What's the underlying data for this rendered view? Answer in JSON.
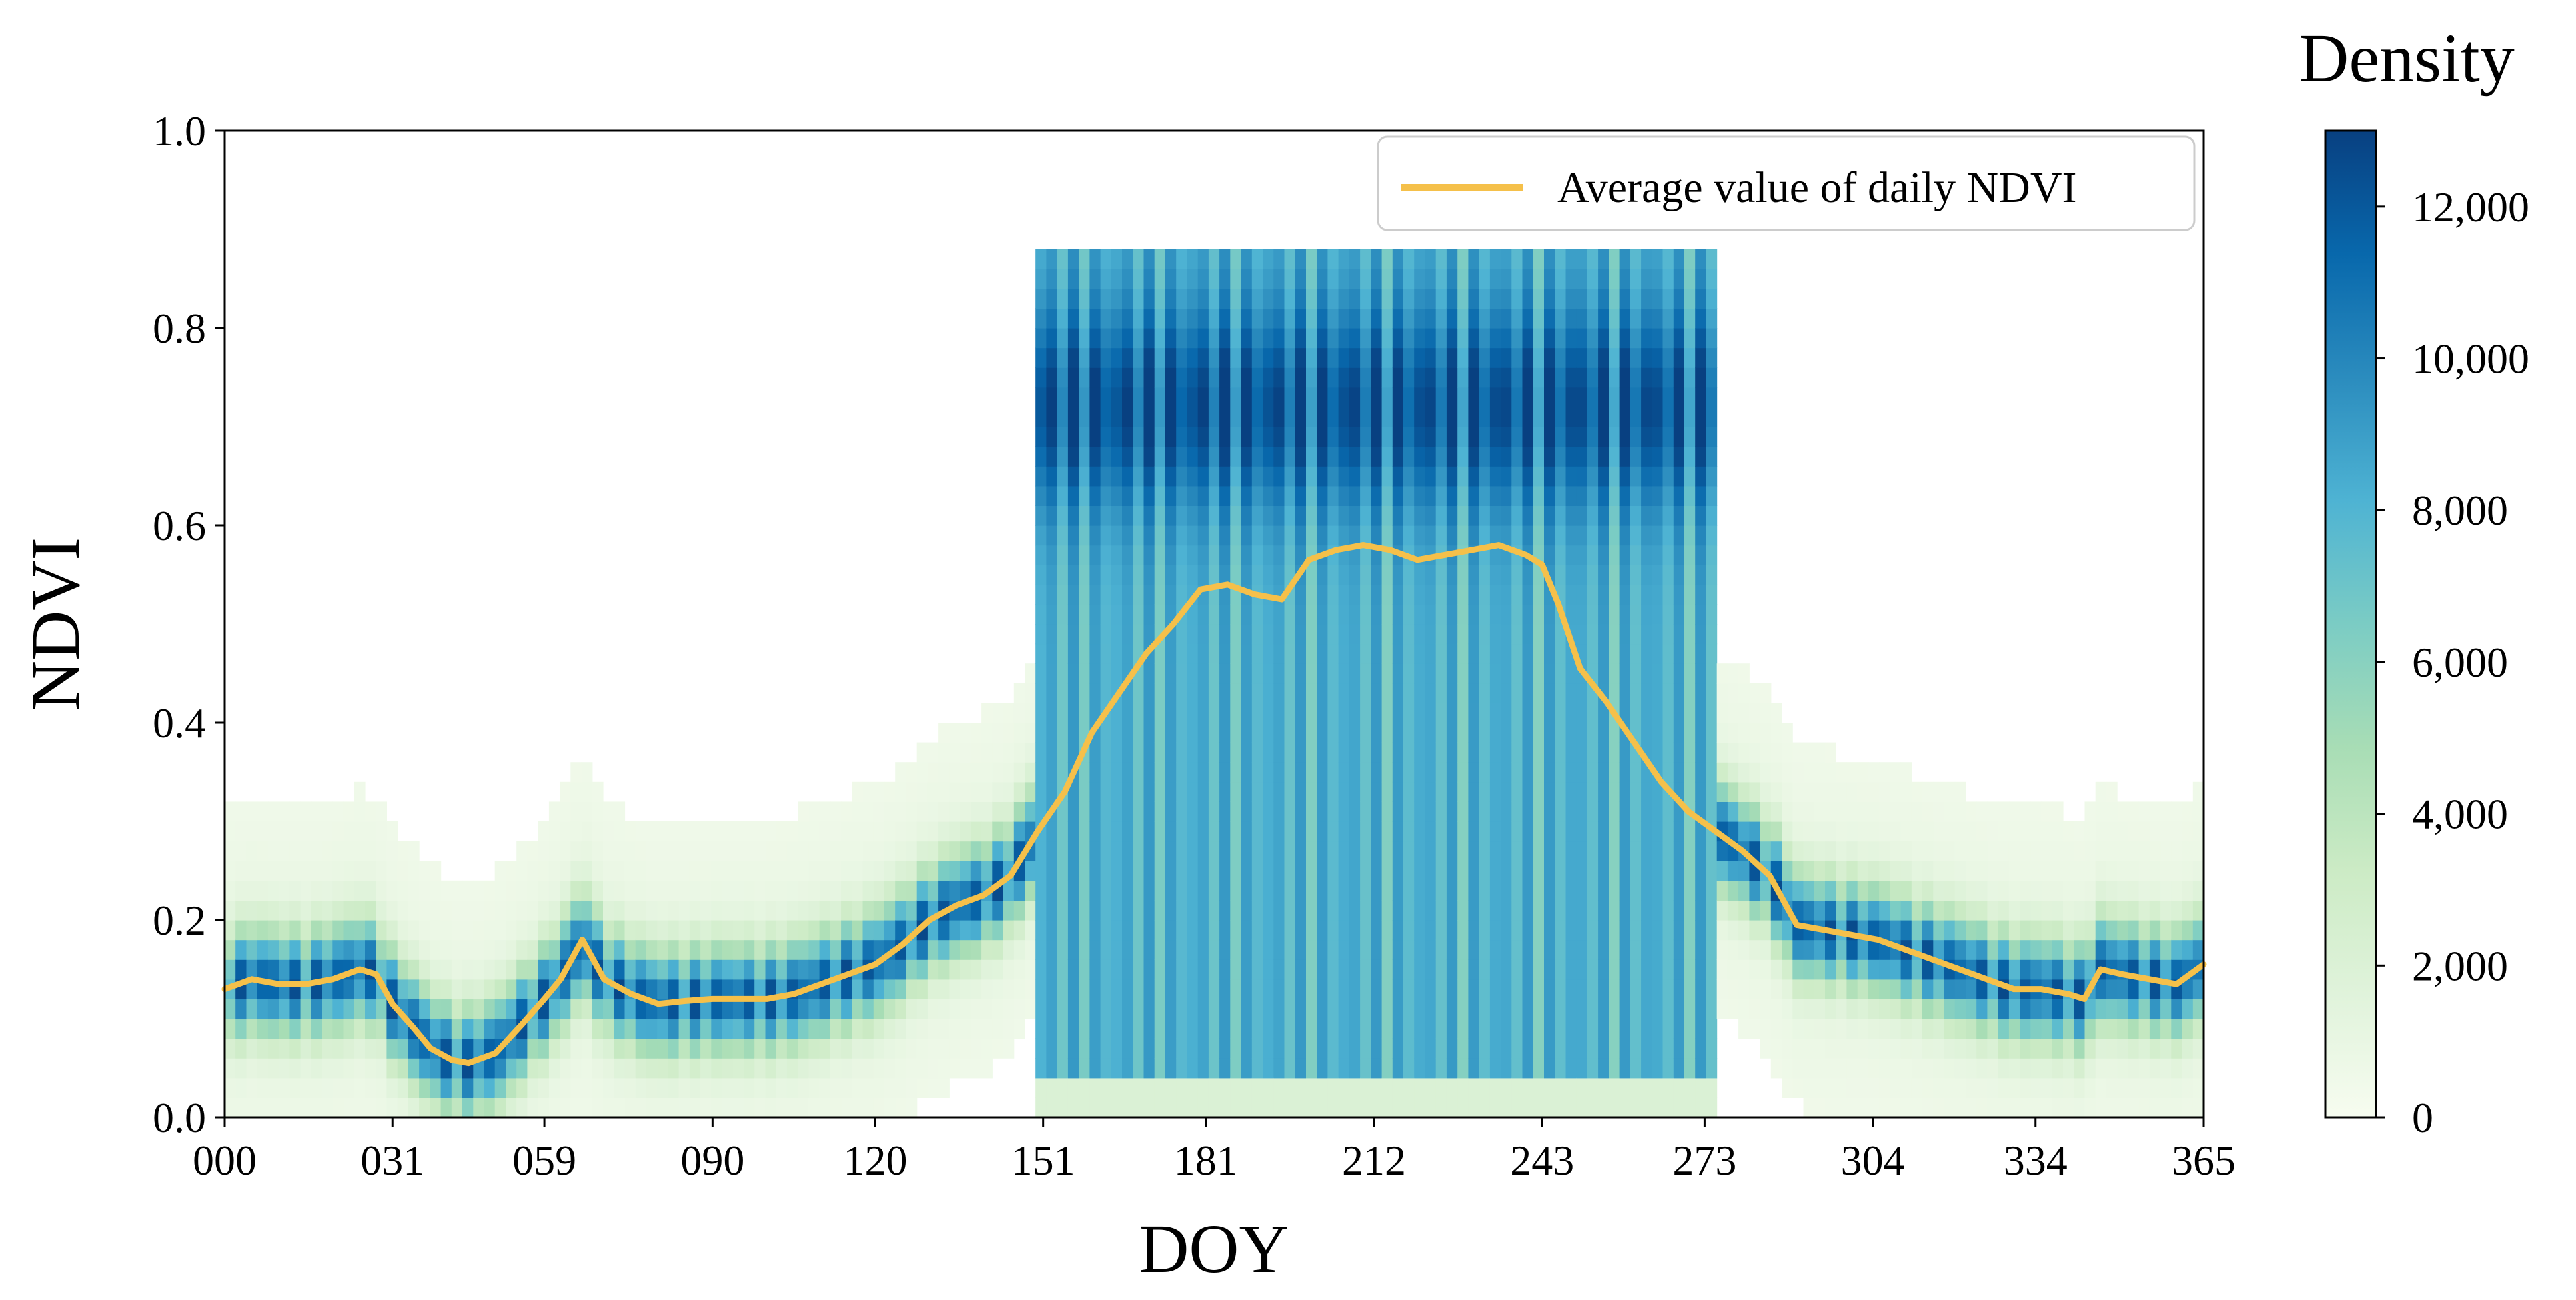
{
  "chart_data": {
    "type": "heatmap",
    "xlabel": "DOY",
    "ylabel": "NDVI",
    "xlim": [
      0,
      365
    ],
    "ylim": [
      0.0,
      1.0
    ],
    "x_ticks": [
      {
        "value": 0,
        "label": "000"
      },
      {
        "value": 31,
        "label": "031"
      },
      {
        "value": 59,
        "label": "059"
      },
      {
        "value": 90,
        "label": "090"
      },
      {
        "value": 120,
        "label": "120"
      },
      {
        "value": 151,
        "label": "151"
      },
      {
        "value": 181,
        "label": "181"
      },
      {
        "value": 212,
        "label": "212"
      },
      {
        "value": 243,
        "label": "243"
      },
      {
        "value": 273,
        "label": "273"
      },
      {
        "value": 304,
        "label": "304"
      },
      {
        "value": 334,
        "label": "334"
      },
      {
        "value": 365,
        "label": "365"
      }
    ],
    "y_ticks": [
      {
        "value": 0.0,
        "label": "0.0"
      },
      {
        "value": 0.2,
        "label": "0.2"
      },
      {
        "value": 0.4,
        "label": "0.4"
      },
      {
        "value": 0.6,
        "label": "0.6"
      },
      {
        "value": 0.8,
        "label": "0.8"
      },
      {
        "value": 1.0,
        "label": "1.0"
      }
    ],
    "colorbar": {
      "title": "Density",
      "range": [
        0,
        13000
      ],
      "ticks": [
        {
          "value": 0,
          "label": "0"
        },
        {
          "value": 2000,
          "label": "2,000"
        },
        {
          "value": 4000,
          "label": "4,000"
        },
        {
          "value": 6000,
          "label": "6,000"
        },
        {
          "value": 8000,
          "label": "8,000"
        },
        {
          "value": 10000,
          "label": "10,000"
        },
        {
          "value": 12000,
          "label": "12,000"
        }
      ],
      "colors": [
        "#f7fcf0",
        "#e0f3db",
        "#ccebc5",
        "#a8ddb5",
        "#7bccc4",
        "#4eb3d3",
        "#2b8cbe",
        "#0868ac",
        "#084081"
      ]
    },
    "legend": {
      "label": "Average value of daily NDVI",
      "placement": "top-right",
      "color": "#f5c04a"
    },
    "series": [
      {
        "name": "Average value of daily NDVI",
        "x": [
          0,
          5,
          10,
          15,
          20,
          25,
          28,
          31,
          35,
          38,
          42,
          45,
          50,
          55,
          59,
          62,
          66,
          70,
          75,
          80,
          85,
          90,
          95,
          100,
          105,
          110,
          115,
          120,
          125,
          130,
          135,
          140,
          145,
          150,
          155,
          160,
          165,
          170,
          175,
          180,
          185,
          190,
          195,
          200,
          205,
          210,
          215,
          220,
          225,
          230,
          235,
          240,
          243,
          246,
          250,
          255,
          260,
          265,
          270,
          275,
          280,
          285,
          290,
          295,
          300,
          305,
          310,
          315,
          320,
          325,
          330,
          335,
          340,
          343,
          346,
          350,
          355,
          360,
          365
        ],
        "values": [
          0.13,
          0.14,
          0.135,
          0.135,
          0.14,
          0.15,
          0.145,
          0.115,
          0.09,
          0.07,
          0.058,
          0.055,
          0.065,
          0.095,
          0.12,
          0.14,
          0.18,
          0.14,
          0.125,
          0.115,
          0.118,
          0.12,
          0.12,
          0.12,
          0.125,
          0.135,
          0.145,
          0.155,
          0.175,
          0.2,
          0.215,
          0.225,
          0.245,
          0.29,
          0.33,
          0.39,
          0.43,
          0.47,
          0.5,
          0.535,
          0.54,
          0.53,
          0.525,
          0.565,
          0.575,
          0.58,
          0.575,
          0.565,
          0.57,
          0.575,
          0.58,
          0.57,
          0.56,
          0.52,
          0.455,
          0.42,
          0.38,
          0.34,
          0.31,
          0.29,
          0.27,
          0.245,
          0.195,
          0.19,
          0.185,
          0.18,
          0.17,
          0.16,
          0.15,
          0.14,
          0.13,
          0.13,
          0.125,
          0.12,
          0.15,
          0.145,
          0.14,
          0.135,
          0.155
        ]
      }
    ]
  }
}
